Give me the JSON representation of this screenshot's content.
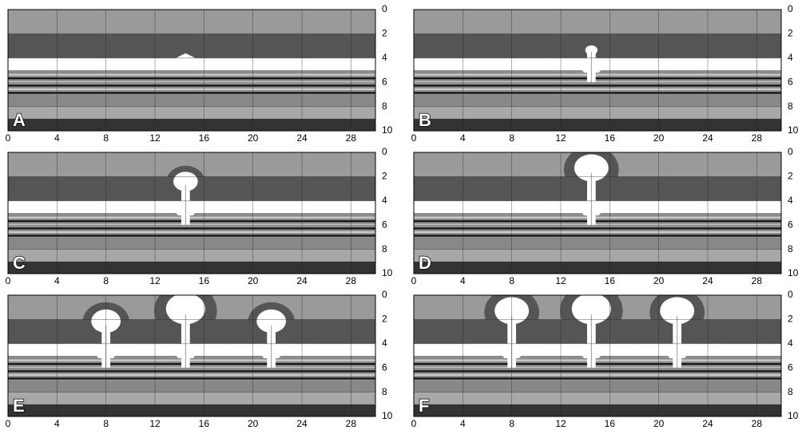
{
  "panels": [
    {
      "label": "A",
      "xlim": [
        0,
        30
      ],
      "ylim": [
        0,
        10
      ],
      "xticks": [
        0,
        4,
        8,
        12,
        16,
        20,
        24,
        28
      ],
      "yticks": [
        0,
        2,
        4,
        6,
        8,
        10
      ]
    },
    {
      "label": "B",
      "xlim": [
        0,
        30
      ],
      "ylim": [
        0,
        10
      ],
      "xticks": [
        0,
        4,
        8,
        12,
        16,
        20,
        24,
        28
      ],
      "yticks": [
        0,
        2,
        4,
        6,
        8,
        10
      ]
    },
    {
      "label": "C",
      "xlim": [
        0,
        30
      ],
      "ylim": [
        0,
        10
      ],
      "xticks": [
        0,
        4,
        8,
        12,
        16,
        20,
        24,
        28
      ],
      "yticks": [
        0,
        2,
        4,
        6,
        8,
        10
      ]
    },
    {
      "label": "D",
      "xlim": [
        0,
        30
      ],
      "ylim": [
        0,
        10
      ],
      "xticks": [
        0,
        4,
        8,
        12,
        16,
        20,
        24,
        28
      ],
      "yticks": [
        0,
        2,
        4,
        6,
        8,
        10
      ]
    },
    {
      "label": "E",
      "xlim": [
        0,
        30
      ],
      "ylim": [
        0,
        10
      ],
      "xticks": [
        0,
        4,
        8,
        12,
        16,
        20,
        24,
        28
      ],
      "yticks": [
        0,
        2,
        4,
        6,
        8,
        10
      ]
    },
    {
      "label": "F",
      "xlim": [
        0,
        30
      ],
      "ylim": [
        0,
        10
      ],
      "xticks": [
        0,
        4,
        8,
        12,
        16,
        20,
        24,
        28
      ],
      "yticks": [
        0,
        2,
        4,
        6,
        8,
        10
      ]
    }
  ]
}
